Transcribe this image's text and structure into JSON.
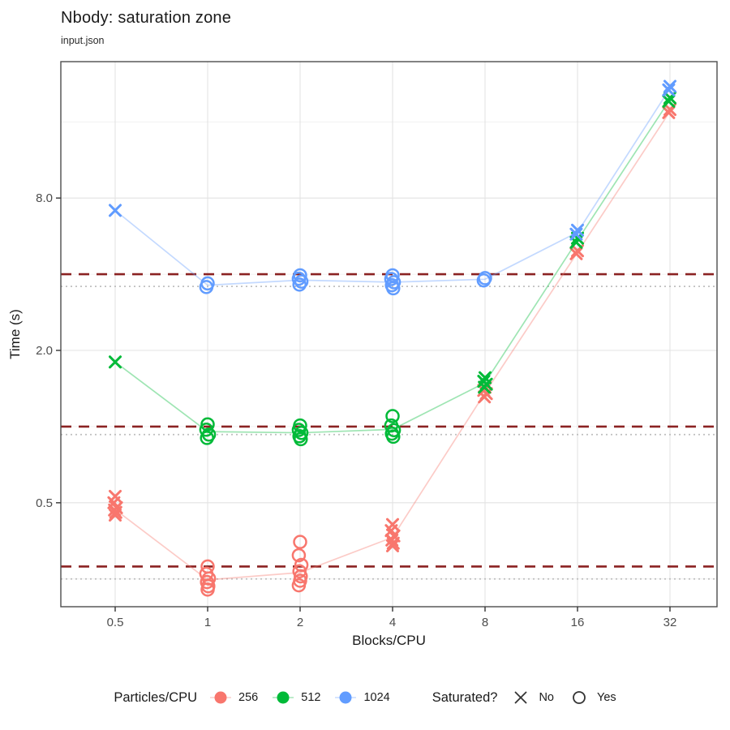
{
  "header": {
    "title": "Nbody: saturation zone",
    "subtitle": "input.json"
  },
  "chart_data": {
    "type": "scatter",
    "title": "Nbody: saturation zone",
    "subtitle": "input.json",
    "xlabel": "Blocks/CPU",
    "ylabel": "Time (s)",
    "x_scale": "log2",
    "y_scale": "log10",
    "x_ticks": [
      0.5,
      1,
      2,
      4,
      8,
      16,
      32
    ],
    "x_tick_labels": [
      "0.5",
      "1",
      "2",
      "4",
      "8",
      "16",
      "32"
    ],
    "y_ticks": [
      0.5,
      2.0,
      8.0
    ],
    "y_tick_labels": [
      "0.5",
      "2.0",
      "8.0"
    ],
    "y_minor_ticks": [
      0.25,
      1.0,
      4.0,
      16.0
    ],
    "x_range": [
      0.33,
      45
    ],
    "y_range": [
      0.195,
      27.5
    ],
    "grid": true,
    "reference_lines": {
      "dashed": {
        "style": "dashed",
        "color": "#8B2222",
        "values": [
          4.0,
          1.0,
          0.28
        ]
      },
      "dotted": {
        "style": "dotted",
        "color": "#BFBFBF",
        "values": [
          3.58,
          0.93,
          0.25
        ]
      }
    },
    "shape_encoding": {
      "x": "not saturated",
      "circle": "saturated"
    },
    "series": [
      {
        "name": "256",
        "color": "#F8766D",
        "line": {
          "x": [
            0.5,
            1,
            2,
            4,
            8,
            16,
            32
          ],
          "y": [
            0.47,
            0.248,
            0.265,
            0.365,
            1.36,
            4.88,
            17.6
          ]
        },
        "clusters": [
          {
            "x": 0.5,
            "shape": "x",
            "values": [
              0.53,
              0.5,
              0.478,
              0.468,
              0.458,
              0.447
            ]
          },
          {
            "x": 1,
            "shape": "o",
            "values": [
              0.28,
              0.262,
              0.251,
              0.243,
              0.234,
              0.227
            ]
          },
          {
            "x": 2,
            "shape": "o",
            "values": [
              0.35,
              0.31,
              0.284,
              0.268,
              0.256,
              0.246,
              0.236
            ]
          },
          {
            "x": 4,
            "shape": "x",
            "values": [
              0.41,
              0.388,
              0.37,
              0.356,
              0.346,
              0.338
            ]
          },
          {
            "x": 8,
            "shape": "x",
            "values": [
              1.43,
              1.39,
              1.35,
              1.31
            ]
          },
          {
            "x": 16,
            "shape": "x",
            "values": [
              4.95,
              4.82
            ]
          },
          {
            "x": 32,
            "shape": "x",
            "values": [
              17.9,
              17.4
            ]
          }
        ]
      },
      {
        "name": "512",
        "color": "#00BA38",
        "line": {
          "x": [
            0.5,
            1,
            2,
            4,
            8,
            16,
            32
          ],
          "y": [
            1.8,
            0.955,
            0.945,
            0.975,
            1.49,
            5.45,
            19.6
          ]
        },
        "clusters": [
          {
            "x": 0.5,
            "shape": "x",
            "values": [
              1.8
            ]
          },
          {
            "x": 1,
            "shape": "o",
            "values": [
              1.02,
              0.972,
              0.93,
              0.902
            ]
          },
          {
            "x": 2,
            "shape": "o",
            "values": [
              1.01,
              0.97,
              0.944,
              0.916,
              0.892
            ]
          },
          {
            "x": 4,
            "shape": "o",
            "values": [
              1.1,
              1.01,
              0.968,
              0.938,
              0.912
            ]
          },
          {
            "x": 8,
            "shape": "x",
            "values": [
              1.56,
              1.51,
              1.47,
              1.43
            ]
          },
          {
            "x": 16,
            "shape": "x",
            "values": [
              5.55,
              5.35
            ]
          },
          {
            "x": 32,
            "shape": "x",
            "values": [
              19.9,
              19.3
            ]
          }
        ]
      },
      {
        "name": "1024",
        "color": "#619CFF",
        "line": {
          "x": [
            0.5,
            1,
            2,
            4,
            8,
            16,
            32
          ],
          "y": [
            7.15,
            3.62,
            3.79,
            3.72,
            3.82,
            5.86,
            21.7
          ]
        },
        "clusters": [
          {
            "x": 0.5,
            "shape": "x",
            "values": [
              7.15
            ]
          },
          {
            "x": 1,
            "shape": "o",
            "values": [
              3.68,
              3.56
            ]
          },
          {
            "x": 2,
            "shape": "o",
            "values": [
              3.96,
              3.84,
              3.74,
              3.64
            ]
          },
          {
            "x": 4,
            "shape": "o",
            "values": [
              3.96,
              3.83,
              3.72,
              3.62,
              3.52
            ]
          },
          {
            "x": 8,
            "shape": "o",
            "values": [
              3.86,
              3.78
            ]
          },
          {
            "x": 16,
            "shape": "x",
            "values": [
              5.97,
              5.76
            ]
          },
          {
            "x": 32,
            "shape": "x",
            "values": [
              22.1,
              21.4
            ]
          }
        ]
      }
    ]
  },
  "legend": {
    "color": {
      "title": "Particles/CPU",
      "items": [
        {
          "label": "256",
          "color": "#F8766D"
        },
        {
          "label": "512",
          "color": "#00BA38"
        },
        {
          "label": "1024",
          "color": "#619CFF"
        }
      ]
    },
    "shape": {
      "title": "Saturated?",
      "items": [
        {
          "label": "No",
          "shape": "x"
        },
        {
          "label": "Yes",
          "shape": "circle"
        }
      ]
    }
  },
  "style": {
    "panel_border": "#4D4D4D",
    "grid_major": "#E3E3E3",
    "grid_minor": "#F1F1F1",
    "tick_color": "#333333",
    "tick_label_color": "#4D4D4D",
    "axis_title_color": "#1a1a1a",
    "legend_glyph_color": "#333333"
  }
}
